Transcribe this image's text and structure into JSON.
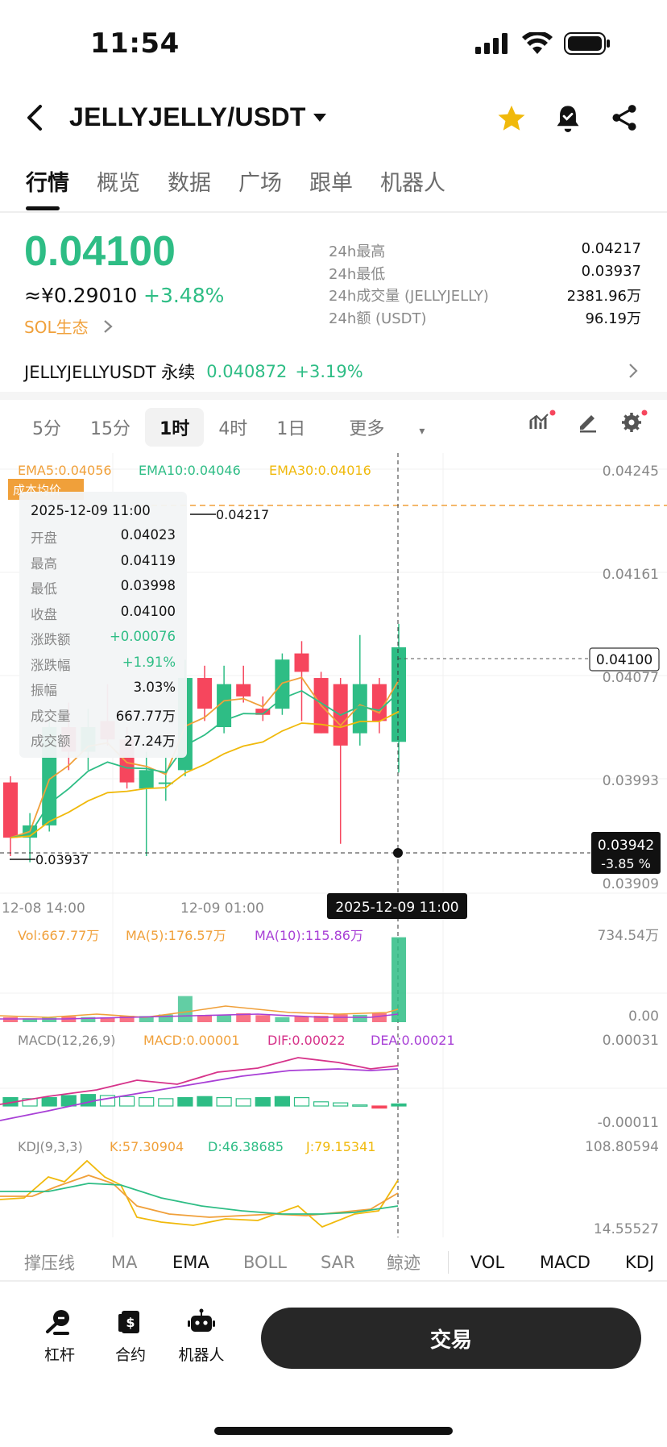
{
  "status": {
    "time": "11:54"
  },
  "header": {
    "pair": "JELLYJELLY/USDT"
  },
  "tabs": [
    "行情",
    "概览",
    "数据",
    "广场",
    "跟单",
    "机器人"
  ],
  "ticker": {
    "price": "0.04100",
    "cny": "≈¥0.29010",
    "change": "+3.48%",
    "ecosystem": "SOL生态"
  },
  "stats": [
    {
      "label": "24h最高",
      "value": "0.04217"
    },
    {
      "label": "24h最低",
      "value": "0.03937"
    },
    {
      "label": "24h成交量 (JELLYJELLY)",
      "value": "2381.96万"
    },
    {
      "label": "24h额 (USDT)",
      "value": "96.19万"
    }
  ],
  "perpetual": {
    "name": "JELLYJELLYUSDT 永续",
    "price": "0.040872",
    "change": "+3.19%"
  },
  "intervals": {
    "items": [
      "5分",
      "15分",
      "1时",
      "4时",
      "1日"
    ],
    "selected": "1时",
    "more": "更多"
  },
  "chart_data": {
    "type": "candlestick",
    "ema_labels": {
      "ema5": "EMA5:0.04056",
      "ema10": "EMA10:0.04046",
      "ema30": "EMA30:0.04016"
    },
    "ylim": [
      0.03909,
      0.04245
    ],
    "y_ticks": [
      "0.04245",
      "0.04161",
      "0.04077",
      "0.03993",
      "0.03909"
    ],
    "x_ticks": [
      "12-08 14:00",
      "12-09 01:00"
    ],
    "high_marker": "0.04217",
    "low_marker": "0.03937",
    "last_price_tag": "0.04100",
    "cursor_price": "0.03942",
    "cursor_pct": "-3.85 %",
    "cursor_time": "2025-12-09 11:00",
    "position_tag": "成本均价",
    "candles": [
      {
        "o": 0.0399,
        "h": 0.03995,
        "l": 0.0393,
        "c": 0.03945
      },
      {
        "o": 0.03945,
        "h": 0.03965,
        "l": 0.03925,
        "c": 0.03955
      },
      {
        "o": 0.03955,
        "h": 0.0404,
        "l": 0.0395,
        "c": 0.04035
      },
      {
        "o": 0.04035,
        "h": 0.04055,
        "l": 0.04,
        "c": 0.04015
      },
      {
        "o": 0.04015,
        "h": 0.0405,
        "l": 0.04,
        "c": 0.04035
      },
      {
        "o": 0.0404,
        "h": 0.0407,
        "l": 0.0402,
        "c": 0.04025
      },
      {
        "o": 0.04025,
        "h": 0.04035,
        "l": 0.03985,
        "c": 0.0399
      },
      {
        "o": 0.03985,
        "h": 0.04015,
        "l": 0.0393,
        "c": 0.04
      },
      {
        "o": 0.0399,
        "h": 0.0401,
        "l": 0.03975,
        "c": 0.0399
      },
      {
        "o": 0.04,
        "h": 0.0409,
        "l": 0.03995,
        "c": 0.04075
      },
      {
        "o": 0.04075,
        "h": 0.04085,
        "l": 0.0404,
        "c": 0.0405
      },
      {
        "o": 0.04035,
        "h": 0.04085,
        "l": 0.0403,
        "c": 0.0407
      },
      {
        "o": 0.0407,
        "h": 0.04085,
        "l": 0.04055,
        "c": 0.0406
      },
      {
        "o": 0.0405,
        "h": 0.0406,
        "l": 0.0404,
        "c": 0.04045
      },
      {
        "o": 0.0405,
        "h": 0.04095,
        "l": 0.04045,
        "c": 0.0409
      },
      {
        "o": 0.04095,
        "h": 0.04105,
        "l": 0.0404,
        "c": 0.0408
      },
      {
        "o": 0.04075,
        "h": 0.0408,
        "l": 0.0403,
        "c": 0.0403
      },
      {
        "o": 0.0407,
        "h": 0.04075,
        "l": 0.0394,
        "c": 0.0402
      },
      {
        "o": 0.0403,
        "h": 0.0411,
        "l": 0.0402,
        "c": 0.0407
      },
      {
        "o": 0.0407,
        "h": 0.04075,
        "l": 0.0403,
        "c": 0.0404
      },
      {
        "o": 0.04023,
        "h": 0.04119,
        "l": 0.03998,
        "c": 0.041
      }
    ],
    "volume": {
      "label": "Vol:667.77万",
      "ma5": "MA(5):176.57万",
      "ma10": "MA(10):115.86万",
      "max_tick": "734.54万",
      "min_tick": "0.00",
      "values": [
        40,
        30,
        35,
        45,
        40,
        38,
        50,
        48,
        60,
        205,
        55,
        60,
        70,
        55,
        40,
        45,
        50,
        60,
        58,
        70,
        667
      ]
    },
    "macd": {
      "label": "MACD(12,26,9)",
      "macd": "MACD:0.00001",
      "dif": "DIF:0.00022",
      "dea": "DEA:0.00021",
      "max_tick": "0.00031",
      "min_tick": "-0.00011",
      "values": [
        4e-05,
        3.5e-05,
        4e-05,
        5e-05,
        5.5e-05,
        5e-05,
        4.5e-05,
        4e-05,
        3.5e-05,
        4e-05,
        4.5e-05,
        4e-05,
        3.5e-05,
        4e-05,
        4.5e-05,
        4e-05,
        2e-05,
        1.5e-05,
        5e-06,
        -1e-05,
        1e-05
      ]
    },
    "kdj": {
      "label": "KDJ(9,3,3)",
      "k": "K:57.30904",
      "d": "D:46.38685",
      "j": "J:79.15341",
      "max_tick": "108.80594",
      "min_tick": "14.55527"
    }
  },
  "tooltip": {
    "time": "2025-12-09 11:00",
    "rows": [
      {
        "k": "开盘",
        "v": "0.04023"
      },
      {
        "k": "最高",
        "v": "0.04119"
      },
      {
        "k": "最低",
        "v": "0.03998"
      },
      {
        "k": "收盘",
        "v": "0.04100"
      },
      {
        "k": "涨跌额",
        "v": "+0.00076"
      },
      {
        "k": "涨跌幅",
        "v": "+1.91%"
      },
      {
        "k": "振幅",
        "v": "3.03%"
      },
      {
        "k": "成交量",
        "v": "667.77万"
      },
      {
        "k": "成交额",
        "v": "27.24万"
      }
    ]
  },
  "indicators": {
    "main": [
      "撑压线",
      "MA",
      "EMA",
      "BOLL",
      "SAR",
      "鲸迹"
    ],
    "sub": [
      "VOL",
      "MACD",
      "KDJ"
    ],
    "active": "EMA"
  },
  "bottom_nav": {
    "lever": "杠杆",
    "contract": "合约",
    "bot": "机器人",
    "trade": "交易"
  },
  "colors": {
    "up": "#2ebd85",
    "down": "#f6465d",
    "ema5": "#f0a03a",
    "ema10": "#2ebd85",
    "ema30": "#f0b90b"
  }
}
